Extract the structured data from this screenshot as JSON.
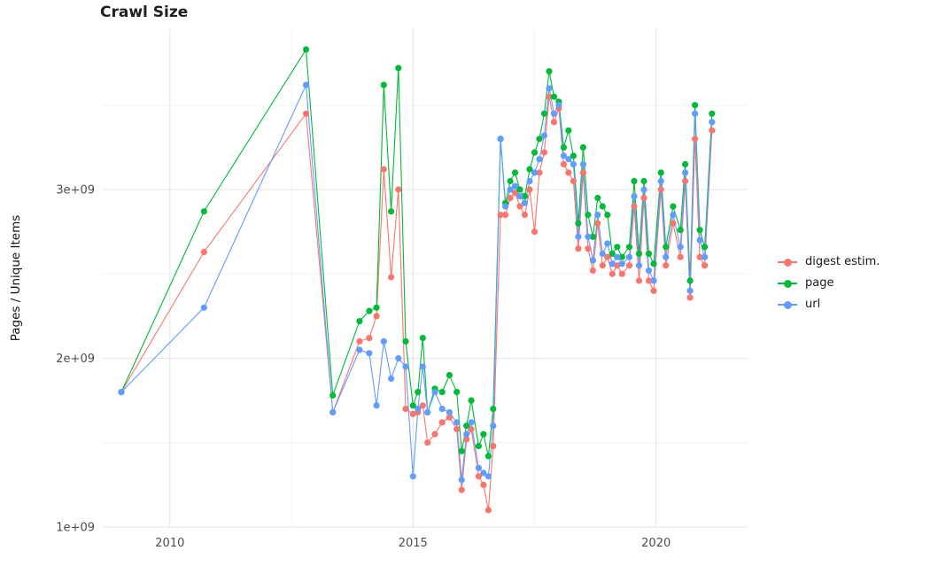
{
  "page": {
    "background": "#ffffff"
  },
  "chart_data": {
    "type": "line",
    "title": "Crawl Size",
    "xlabel": "",
    "ylabel": "Pages / Unique Items",
    "value_unit": "values are in units of 1e9 (billions of pages / unique items)",
    "x": [
      2009.0,
      2010.7,
      2012.8,
      2013.35,
      2013.9,
      2014.1,
      2014.25,
      2014.4,
      2014.55,
      2014.7,
      2014.85,
      2015.0,
      2015.1,
      2015.2,
      2015.3,
      2015.45,
      2015.6,
      2015.75,
      2015.9,
      2016.0,
      2016.1,
      2016.2,
      2016.35,
      2016.45,
      2016.55,
      2016.65,
      2016.8,
      2016.9,
      2017.0,
      2017.1,
      2017.2,
      2017.3,
      2017.4,
      2017.5,
      2017.6,
      2017.7,
      2017.8,
      2017.9,
      2018.0,
      2018.1,
      2018.2,
      2018.3,
      2018.4,
      2018.5,
      2018.6,
      2018.7,
      2018.8,
      2018.9,
      2019.0,
      2019.1,
      2019.2,
      2019.3,
      2019.45,
      2019.55,
      2019.65,
      2019.75,
      2019.85,
      2019.95,
      2020.1,
      2020.2,
      2020.35,
      2020.5,
      2020.6,
      2020.7,
      2020.8,
      2020.9,
      2021.0,
      2021.15
    ],
    "series": [
      {
        "name": "digest estim.",
        "color": "#F8766D",
        "values": [
          1.8,
          2.63,
          3.45,
          1.68,
          2.1,
          2.12,
          2.25,
          3.12,
          2.48,
          3.0,
          1.7,
          1.67,
          1.68,
          1.72,
          1.5,
          1.55,
          1.62,
          1.65,
          1.58,
          1.22,
          1.52,
          1.58,
          1.3,
          1.25,
          1.1,
          1.48,
          2.85,
          2.85,
          2.95,
          2.98,
          2.9,
          2.85,
          3.0,
          2.75,
          3.1,
          3.22,
          3.55,
          3.4,
          3.48,
          3.15,
          3.1,
          3.05,
          2.65,
          3.1,
          2.65,
          2.52,
          2.8,
          2.55,
          2.6,
          2.5,
          2.55,
          2.5,
          2.55,
          2.9,
          2.46,
          2.95,
          2.46,
          2.4,
          3.0,
          2.55,
          2.8,
          2.6,
          3.05,
          2.36,
          3.3,
          2.6,
          2.55,
          3.35
        ]
      },
      {
        "name": "page",
        "color": "#00BA38",
        "values": [
          1.8,
          2.87,
          3.83,
          1.78,
          2.22,
          2.28,
          2.3,
          3.62,
          2.87,
          3.72,
          2.1,
          1.72,
          1.8,
          2.12,
          1.68,
          1.82,
          1.8,
          1.9,
          1.8,
          1.45,
          1.6,
          1.75,
          1.48,
          1.55,
          1.42,
          1.7,
          3.3,
          2.92,
          3.05,
          3.1,
          3.0,
          2.96,
          3.12,
          3.22,
          3.3,
          3.45,
          3.7,
          3.55,
          3.52,
          3.25,
          3.35,
          3.2,
          2.8,
          3.25,
          2.85,
          2.72,
          2.95,
          2.9,
          2.85,
          2.62,
          2.66,
          2.6,
          2.66,
          3.05,
          2.62,
          3.05,
          2.62,
          2.56,
          3.1,
          2.66,
          2.9,
          2.76,
          3.15,
          2.46,
          3.5,
          2.76,
          2.66,
          3.45
        ]
      },
      {
        "name": "url",
        "color": "#619CFF",
        "values": [
          1.8,
          2.3,
          3.62,
          1.68,
          2.05,
          2.03,
          1.72,
          2.1,
          1.88,
          2.0,
          1.95,
          1.3,
          1.7,
          1.95,
          1.68,
          1.8,
          1.7,
          1.68,
          1.62,
          1.28,
          1.55,
          1.62,
          1.35,
          1.32,
          1.3,
          1.6,
          3.3,
          2.9,
          3.0,
          3.02,
          2.96,
          2.92,
          3.05,
          3.1,
          3.18,
          3.32,
          3.6,
          3.45,
          3.5,
          3.2,
          3.18,
          3.15,
          2.72,
          3.15,
          2.72,
          2.58,
          2.85,
          2.62,
          2.68,
          2.56,
          2.6,
          2.56,
          2.6,
          2.96,
          2.55,
          3.0,
          2.52,
          2.46,
          3.05,
          2.6,
          2.85,
          2.66,
          3.1,
          2.4,
          3.45,
          2.7,
          2.6,
          3.4
        ]
      }
    ],
    "x_ticks": [
      2010,
      2015,
      2020
    ],
    "x_tick_labels": [
      "2010",
      "2015",
      "2020"
    ],
    "x_minor_ticks": [
      2012.5,
      2017.5
    ],
    "y_ticks": [
      1,
      2,
      3
    ],
    "y_tick_labels": [
      "1e+09",
      "2e+09",
      "3e+09"
    ],
    "y_minor_ticks": [
      1.5,
      2.5,
      3.5
    ],
    "xlim": [
      2008.6,
      2021.9
    ],
    "ylim": [
      1.0,
      3.95
    ],
    "grid": true,
    "legend_position": "right",
    "marker": "circle",
    "point_radius": 3.6
  },
  "legend": {
    "items": [
      {
        "label": "digest estim.",
        "color": "#F8766D"
      },
      {
        "label": "page",
        "color": "#00BA38"
      },
      {
        "label": "url",
        "color": "#619CFF"
      }
    ]
  }
}
